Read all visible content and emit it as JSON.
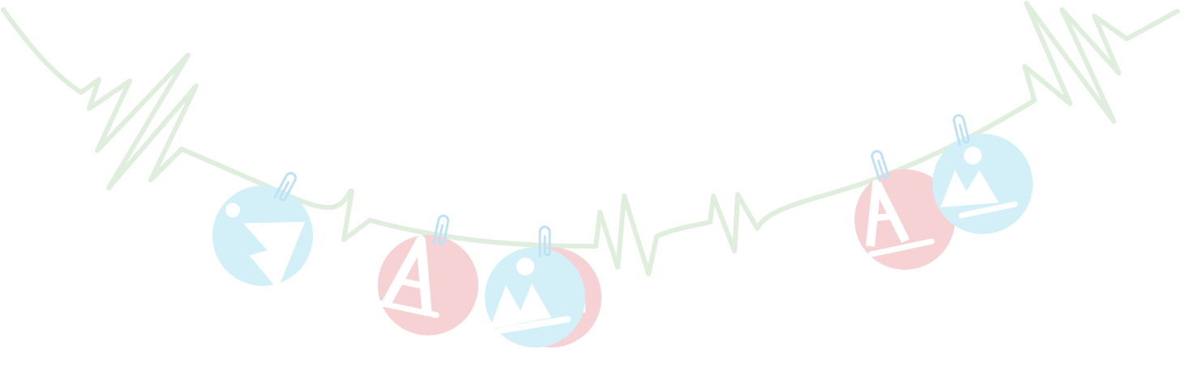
{
  "scene": {
    "description_type": "decorative-illustration",
    "colors": {
      "background": "#ffffff",
      "string": "#dfeedd",
      "ornament_blue": "#d3f0f8",
      "ornament_pink": "#f6d2d4",
      "clip": "#bfe1f4",
      "glyph": "#ffffff"
    },
    "ornaments": [
      {
        "kind": "blue",
        "icon": "mountain-icon"
      },
      {
        "kind": "pink",
        "icon": "letter-a-icon"
      },
      {
        "kind": "pink",
        "icon": "letter-a-icon"
      },
      {
        "kind": "blue",
        "icon": "mountain-icon"
      },
      {
        "kind": "pink",
        "icon": "letter-a-icon"
      },
      {
        "kind": "blue",
        "icon": "mountain-icon"
      }
    ],
    "clip_icon": "paperclip-icon"
  }
}
